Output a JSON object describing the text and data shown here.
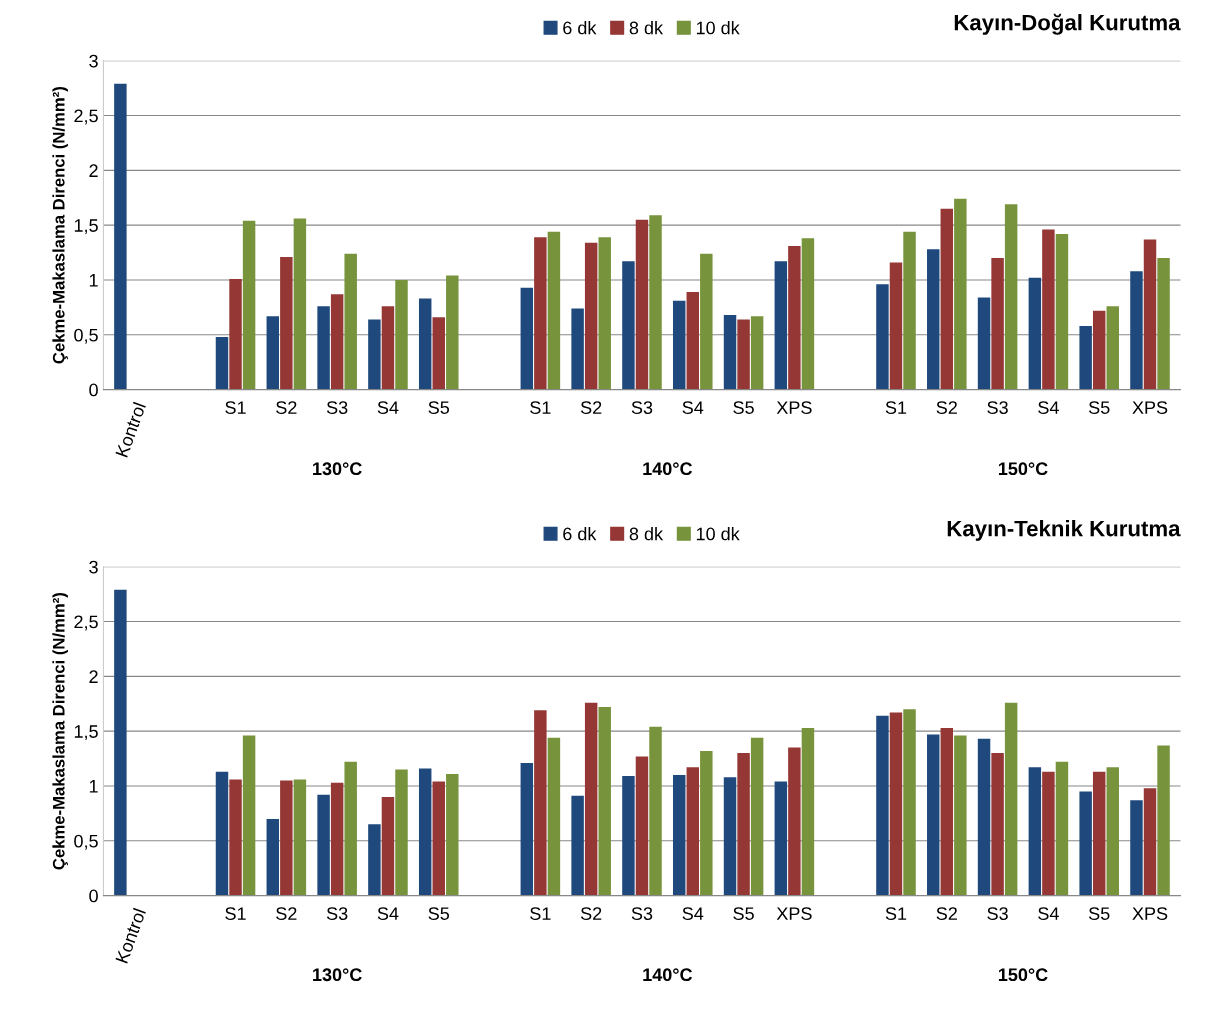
{
  "chart_data": [
    {
      "type": "bar",
      "title": "Kayın-Doğal Kurutma",
      "ylabel": "Çekme-Makaslama Direnci (N/mm²)",
      "categories": [
        "Kontrol",
        null,
        "S1",
        "S2",
        "S3",
        "S4",
        "S5",
        null,
        "S1",
        "S2",
        "S3",
        "S4",
        "S5",
        "XPS",
        null,
        "S1",
        "S2",
        "S3",
        "S4",
        "S5",
        "XPS"
      ],
      "series": [
        {
          "name": "6 dk",
          "color": "#1f497d",
          "values": [
            2.79,
            null,
            0.48,
            0.67,
            0.76,
            0.64,
            0.83,
            null,
            0.93,
            0.74,
            1.17,
            0.81,
            0.68,
            1.17,
            null,
            0.96,
            1.28,
            0.84,
            1.02,
            0.58,
            1.08
          ]
        },
        {
          "name": "8 dk",
          "color": "#953735",
          "values": [
            null,
            null,
            1.01,
            1.21,
            0.87,
            0.76,
            0.66,
            null,
            1.39,
            1.34,
            1.55,
            0.89,
            0.64,
            1.31,
            null,
            1.16,
            1.65,
            1.2,
            1.46,
            0.72,
            1.37
          ]
        },
        {
          "name": "10 dk",
          "color": "#77933c",
          "values": [
            null,
            null,
            1.54,
            1.56,
            1.24,
            1.0,
            1.04,
            null,
            1.44,
            1.39,
            1.59,
            1.24,
            0.67,
            1.38,
            null,
            1.44,
            1.74,
            1.69,
            1.42,
            0.76,
            1.2
          ]
        }
      ],
      "annotations": [
        "130°C",
        "140°C",
        "150°C"
      ],
      "ylim": [
        0,
        3
      ],
      "yticks": [
        0,
        {
          "value": 0.5,
          "label": "0,5"
        },
        1,
        {
          "value": 1.5,
          "label": "1,5"
        },
        2,
        {
          "value": 2.5,
          "label": "2,5"
        },
        3
      ],
      "grid": "y",
      "legend": "top"
    },
    {
      "type": "bar",
      "title": "Kayın-Teknik Kurutma",
      "ylabel": "Çekme-Makaslama Direnci (N/mm²)",
      "categories": [
        "Kontrol",
        null,
        "S1",
        "S2",
        "S3",
        "S4",
        "S5",
        null,
        "S1",
        "S2",
        "S3",
        "S4",
        "S5",
        "XPS",
        null,
        "S1",
        "S2",
        "S3",
        "S4",
        "S5",
        "XPS"
      ],
      "series": [
        {
          "name": "6 dk",
          "color": "#1f497d",
          "values": [
            2.79,
            null,
            1.13,
            0.7,
            0.92,
            0.65,
            1.16,
            null,
            1.21,
            0.91,
            1.09,
            1.1,
            1.08,
            1.04,
            null,
            1.64,
            1.47,
            1.43,
            1.17,
            0.95,
            0.87
          ]
        },
        {
          "name": "8 dk",
          "color": "#953735",
          "values": [
            null,
            null,
            1.06,
            1.05,
            1.03,
            0.9,
            1.04,
            null,
            1.69,
            1.76,
            1.27,
            1.17,
            1.3,
            1.35,
            null,
            1.67,
            1.53,
            1.3,
            1.13,
            1.13,
            0.98
          ]
        },
        {
          "name": "10 dk",
          "color": "#77933c",
          "values": [
            null,
            null,
            1.46,
            1.06,
            1.22,
            1.15,
            1.11,
            null,
            1.44,
            1.72,
            1.54,
            1.32,
            1.44,
            1.53,
            null,
            1.7,
            1.46,
            1.76,
            1.22,
            1.17,
            1.37
          ]
        }
      ],
      "annotations": [
        "130°C",
        "140°C",
        "150°C"
      ],
      "ylim": [
        0,
        3
      ],
      "yticks": [
        0,
        {
          "value": 0.5,
          "label": "0,5"
        },
        1,
        {
          "value": 1.5,
          "label": "1,5"
        },
        2,
        {
          "value": 2.5,
          "label": "2,5"
        },
        3
      ],
      "grid": "y",
      "legend": "top"
    }
  ]
}
